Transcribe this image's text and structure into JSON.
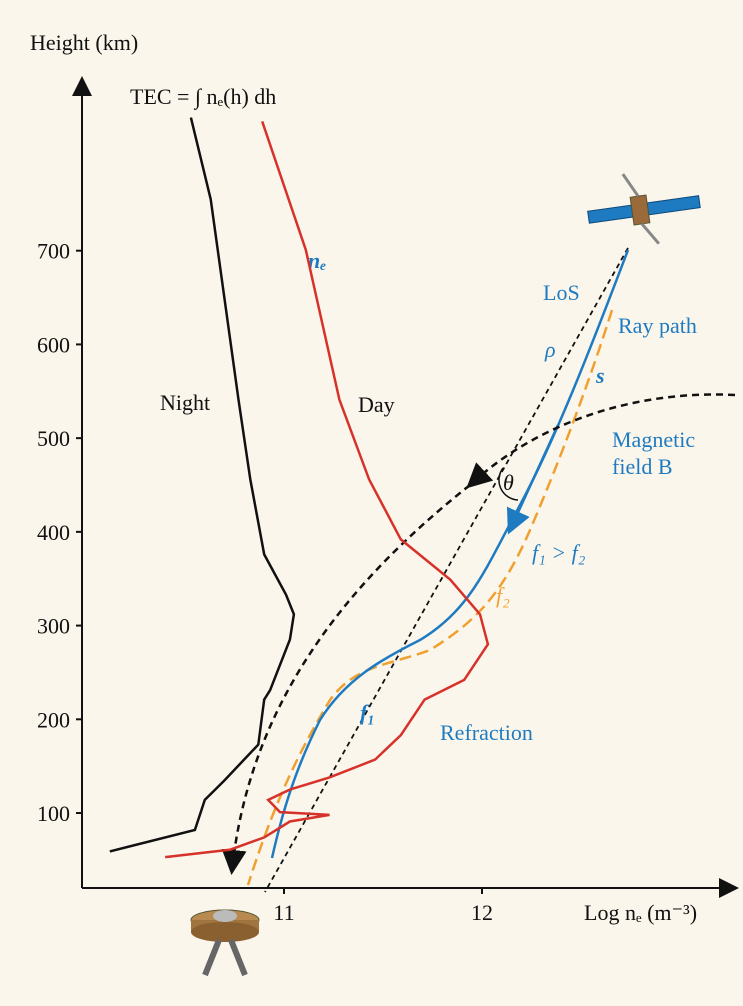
{
  "chart_data": {
    "type": "line",
    "y_label": "Height (km)",
    "x_label": "Log nₑ (m⁻³)",
    "formula": "TEC = ∫ nₑ(h) dh",
    "xlim": [
      10,
      13.3
    ],
    "ylim": [
      20,
      880
    ],
    "xticks": [
      11,
      12
    ],
    "yticks": [
      100,
      200,
      300,
      400,
      500,
      600,
      700
    ],
    "series": [
      {
        "name": "Night",
        "color": "#111111",
        "x": [
          10.12,
          10.55,
          10.6,
          10.7,
          10.87,
          10.9,
          10.93,
          11.03,
          11.05,
          11.01,
          10.9,
          10.83,
          10.77,
          10.7,
          10.63,
          10.53
        ],
        "values": [
          59,
          82,
          114,
          135,
          173,
          221,
          231,
          285,
          312,
          333,
          376,
          456,
          541,
          648,
          755,
          842
        ]
      },
      {
        "name": "Day",
        "color": "#d7322a",
        "x": [
          10.4,
          10.73,
          10.9,
          11.03,
          11.23,
          10.98,
          10.92,
          11.03,
          11.23,
          11.46,
          11.59,
          11.71,
          11.91,
          12.03,
          11.99,
          11.84,
          11.59,
          11.43,
          11.28,
          11.11,
          10.89
        ],
        "values": [
          53,
          61,
          74,
          91,
          98,
          101,
          114,
          125,
          138,
          157,
          183,
          221,
          242,
          280,
          312,
          349,
          392,
          456,
          541,
          701,
          838
        ]
      }
    ],
    "annotations": [
      "nₑ",
      "LoS",
      "Ray path",
      "ρ",
      "s",
      "Magnetic",
      "field B",
      "θ",
      "f₁ > f₂",
      "f₂",
      "f₁",
      "Refraction"
    ]
  }
}
